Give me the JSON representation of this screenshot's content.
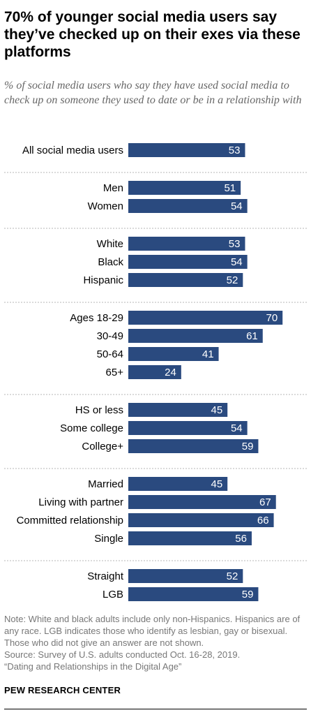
{
  "header": {
    "title": "70% of younger social media users say they’ve checked up on their exes via these platforms",
    "subtitle": "% of social media users who say they have used social media to check up on someone they used to date or be in a relationship with"
  },
  "chart_data": {
    "type": "bar",
    "orientation": "horizontal",
    "bar_color": "#2a4a7f",
    "xlim": [
      0,
      70
    ],
    "groups": [
      {
        "categories": [
          "All social media users"
        ],
        "values": [
          53
        ]
      },
      {
        "categories": [
          "Men",
          "Women"
        ],
        "values": [
          51,
          54
        ]
      },
      {
        "categories": [
          "White",
          "Black",
          "Hispanic"
        ],
        "values": [
          53,
          54,
          52
        ]
      },
      {
        "categories": [
          "Ages 18-29",
          "30-49",
          "50-64",
          "65+"
        ],
        "values": [
          70,
          61,
          41,
          24
        ]
      },
      {
        "categories": [
          "HS or less",
          "Some college",
          "College+"
        ],
        "values": [
          45,
          54,
          59
        ]
      },
      {
        "categories": [
          "Married",
          "Living with partner",
          "Committed relationship",
          "Single"
        ],
        "values": [
          45,
          67,
          66,
          56
        ]
      },
      {
        "categories": [
          "Straight",
          "LGB"
        ],
        "values": [
          52,
          59
        ]
      }
    ]
  },
  "footer": {
    "note": "Note: White and black adults include only non-Hispanics. Hispanics are of any race. LGB indicates those who identify as lesbian, gay or bisexual. Those who did not give an answer are not shown.",
    "source": "Source: Survey of U.S. adults conducted Oct. 16-28, 2019.",
    "report": "“Dating and Relationships in the Digital Age”",
    "logo": "PEW RESEARCH CENTER"
  }
}
